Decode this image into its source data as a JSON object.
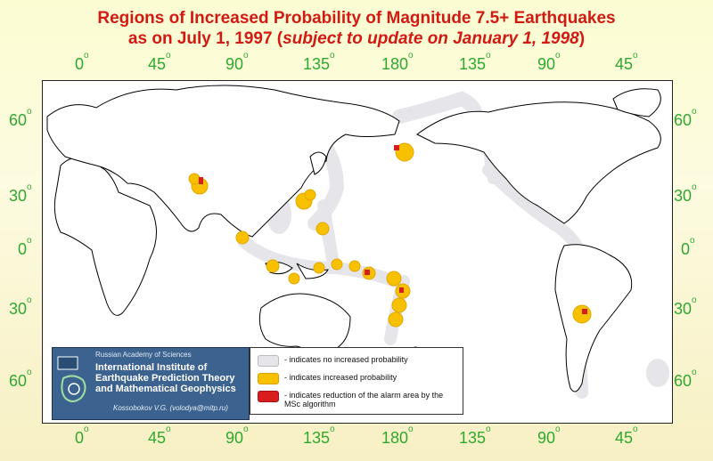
{
  "title": {
    "line1": "Regions of Increased Probability of Magnitude 7.5+ Earthquakes",
    "line2_prefix": "as on July 1, 1997 (",
    "line2_italic": "subject to update on January 1, 1998",
    "line2_suffix": ")"
  },
  "longitude_top": [
    "0",
    "45",
    "90",
    "135",
    "180",
    "135",
    "90",
    "45"
  ],
  "longitude_bottom": [
    "0",
    "45",
    "90",
    "135",
    "180",
    "135",
    "90",
    "45"
  ],
  "latitude_left": [
    "60",
    "30",
    "0",
    "30",
    "60"
  ],
  "latitude_right": [
    "60",
    "30",
    "0",
    "30",
    "60"
  ],
  "degree_symbol": "o",
  "legend": {
    "items": [
      {
        "color": "#e6e6ea",
        "text": "- indicates no increased probability"
      },
      {
        "color": "#f7c100",
        "text": "- indicates increased probability"
      },
      {
        "color": "#d91c1c",
        "text": "- indicates reduction of the alarm area by the MSc algorithm"
      }
    ]
  },
  "institute": {
    "academy": "Russian Academy of Sciences",
    "name": "International Institute of Earthquake Prediction Theory and Mathematical Geophysics",
    "author": "Kossobokov V.G. (volodya@mitp.ru)"
  },
  "colors": {
    "title": "#d21a14",
    "ticks": "#2fa82f",
    "no_increase": "#e6e6ea",
    "increased": "#f7c100",
    "reduction": "#d91c1c",
    "panel": "#3c6390"
  }
}
